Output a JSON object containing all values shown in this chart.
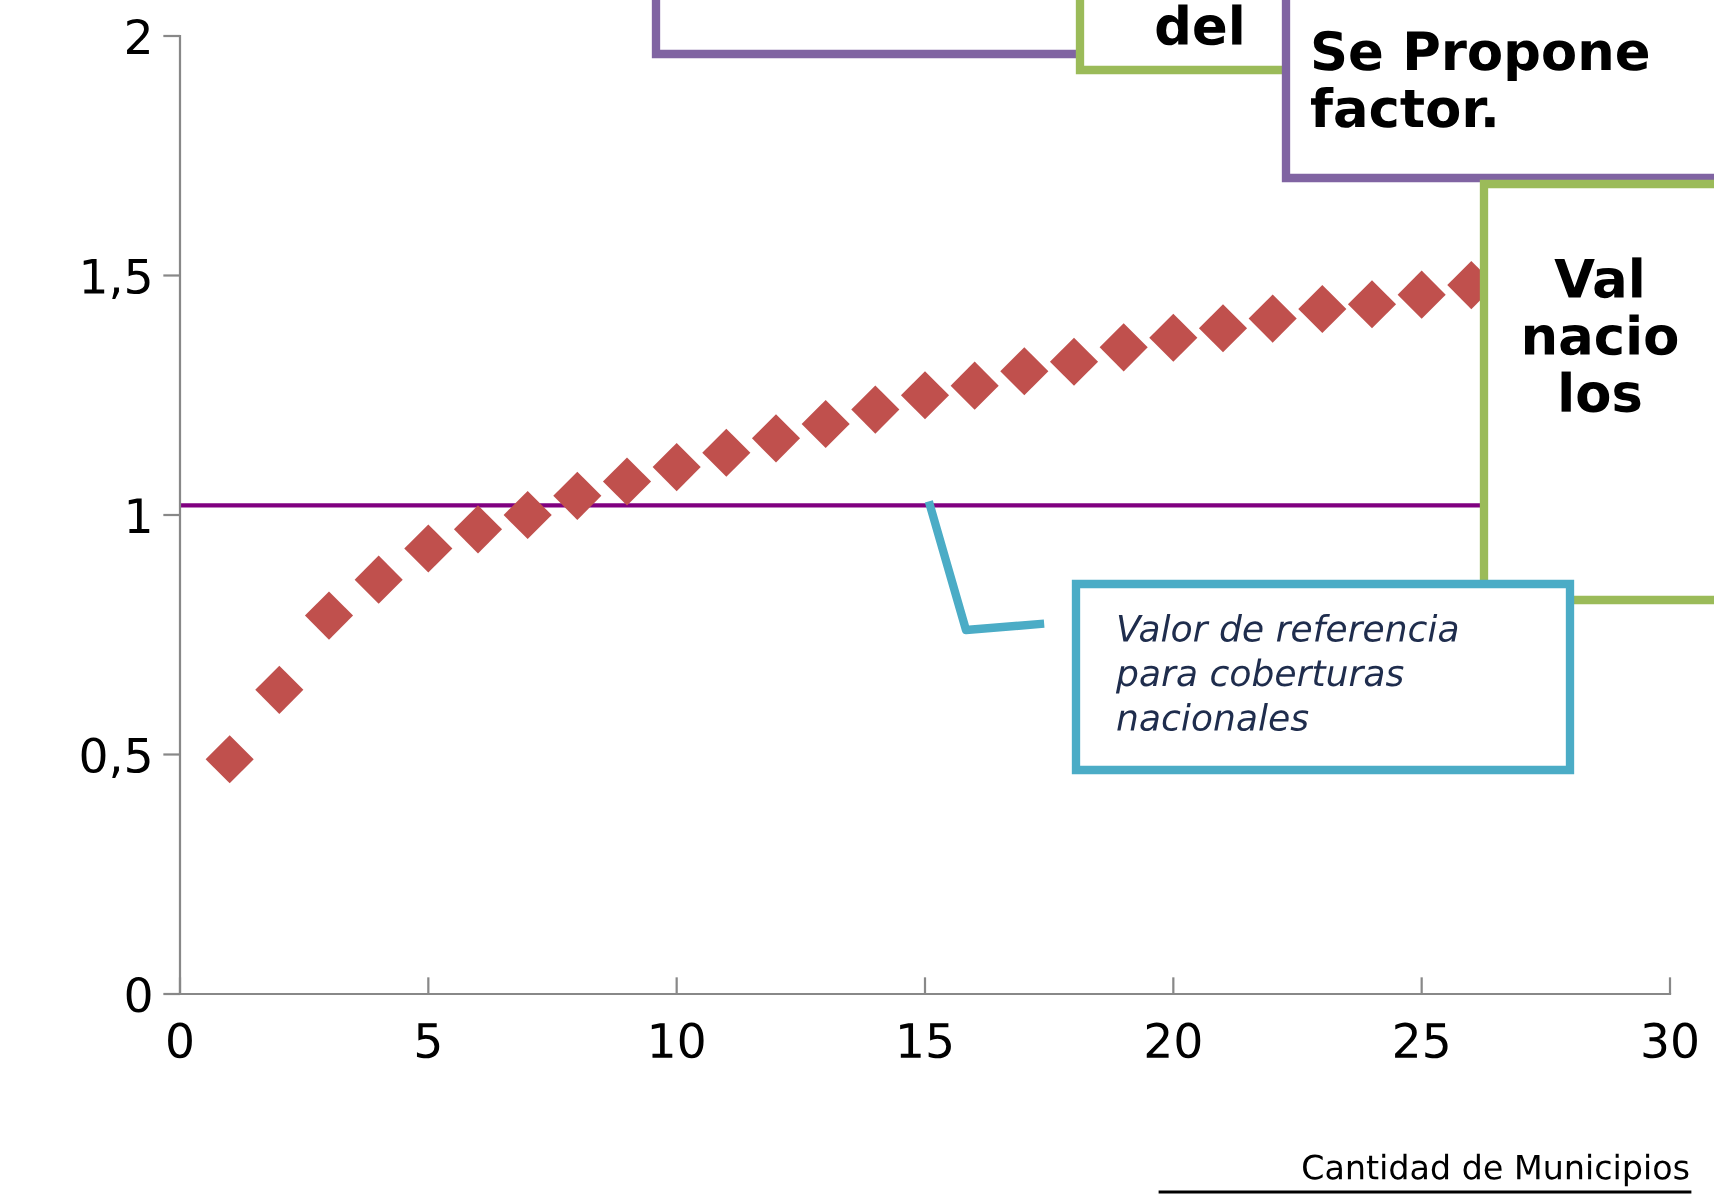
{
  "chart_data": {
    "type": "scatter",
    "xlabel": "Cantidad de Municipios",
    "x": [
      1,
      2,
      3,
      4,
      5,
      6,
      7,
      8,
      9,
      10,
      11,
      12,
      13,
      14,
      15,
      16,
      17,
      18,
      19,
      20,
      21,
      22,
      23,
      24,
      25,
      26
    ],
    "series": [
      {
        "color": "#c0504d",
        "values": [
          0.49,
          0.635,
          0.79,
          0.865,
          0.93,
          0.97,
          1.0,
          1.04,
          1.07,
          1.1,
          1.13,
          1.16,
          1.19,
          1.22,
          1.25,
          1.27,
          1.3,
          1.32,
          1.35,
          1.37,
          1.39,
          1.41,
          1.43,
          1.44,
          1.46,
          1.48
        ]
      }
    ],
    "marker": "diamond",
    "xlim": [
      0,
      30
    ],
    "xticks": [
      0,
      5,
      10,
      15,
      20,
      25,
      30
    ],
    "ylim": [
      0,
      2
    ],
    "yticks": [
      0,
      {
        "value": 0.5,
        "label": "0,5"
      },
      1,
      {
        "value": 1.5,
        "label": "1,5"
      },
      2
    ],
    "ref_lines": [
      {
        "axis": "y",
        "value": 1.02,
        "color": "#800080"
      }
    ],
    "annotations": [
      "del",
      "Se Propone\nfactor.",
      "Val\nnacio\nlos",
      "Valor de referencia\npara coberturas\nnacionales"
    ],
    "grid": false,
    "legend": false
  }
}
